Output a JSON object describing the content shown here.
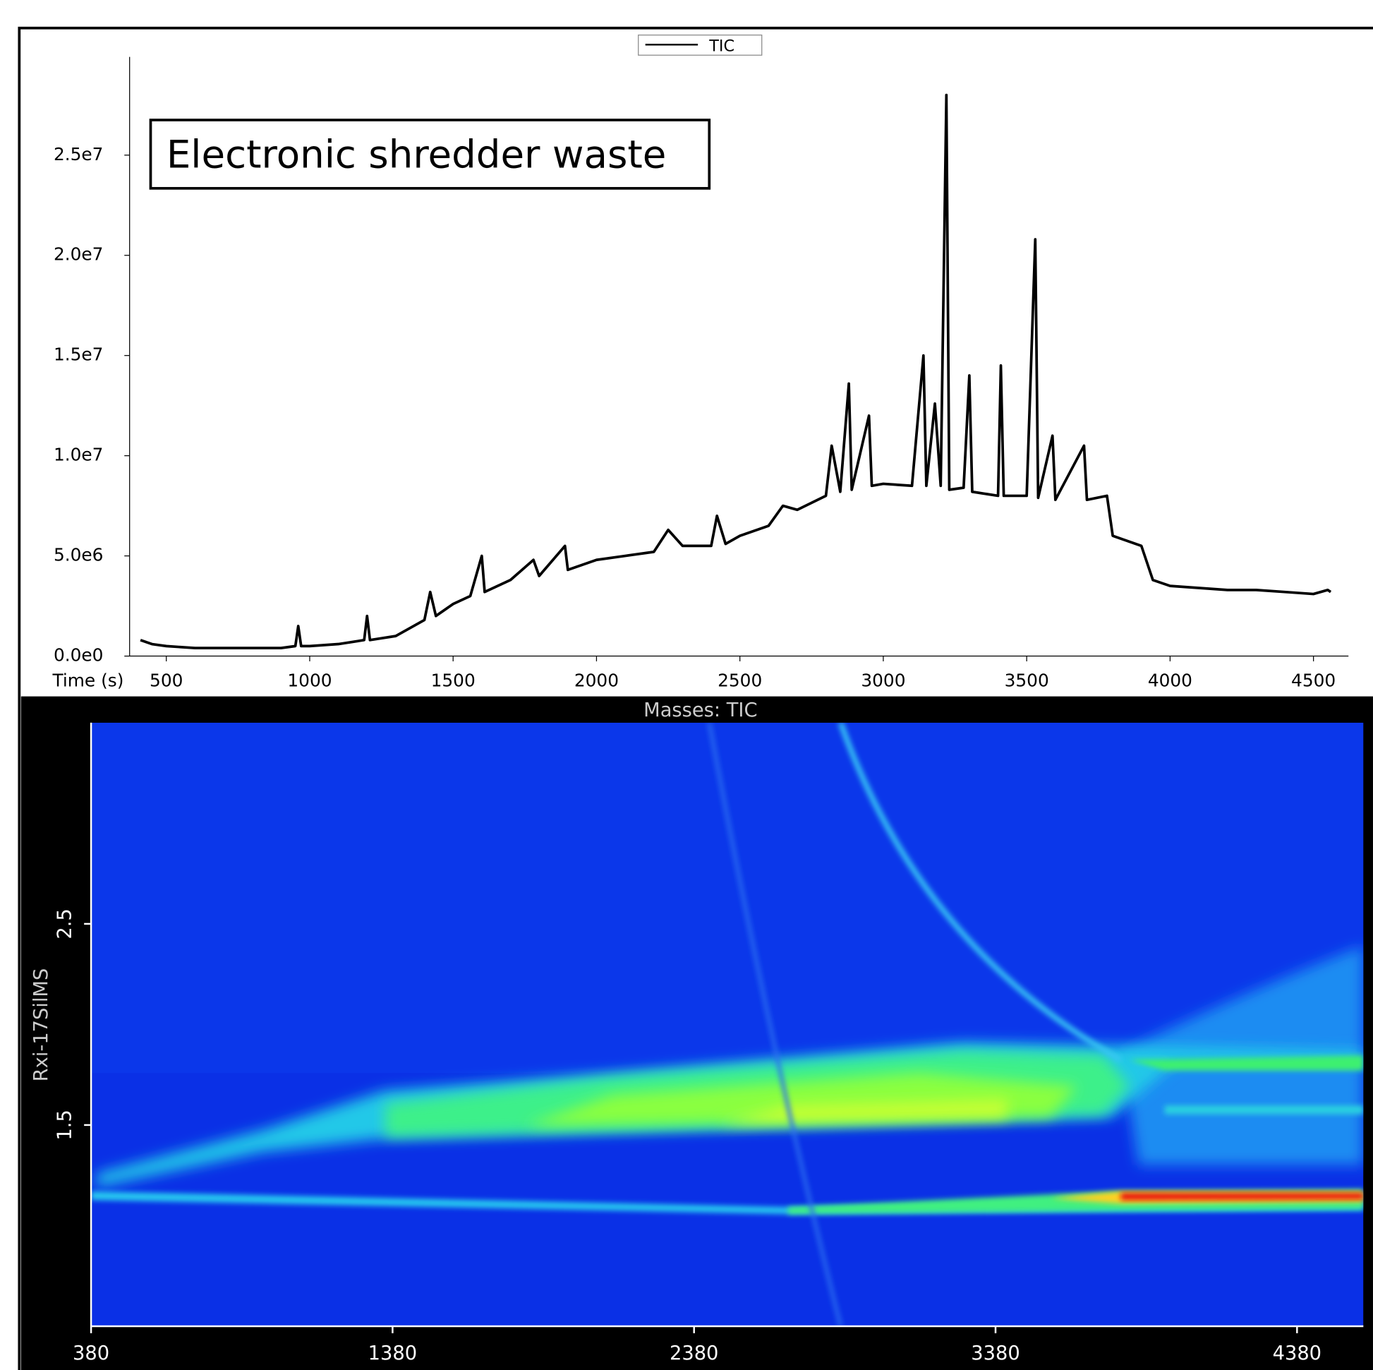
{
  "chart_data": [
    {
      "type": "line",
      "annotation": "Electronic shredder waste",
      "x_label": "Time (s)",
      "x": [
        410,
        450,
        500,
        600,
        700,
        900,
        950,
        960,
        970,
        1000,
        1100,
        1190,
        1200,
        1210,
        1300,
        1400,
        1420,
        1440,
        1500,
        1560,
        1600,
        1610,
        1700,
        1780,
        1800,
        1890,
        1900,
        2000,
        2100,
        2200,
        2250,
        2300,
        2400,
        2420,
        2450,
        2500,
        2600,
        2650,
        2700,
        2800,
        2820,
        2850,
        2880,
        2890,
        2950,
        2960,
        3000,
        3100,
        3140,
        3150,
        3180,
        3200,
        3220,
        3230,
        3280,
        3300,
        3310,
        3400,
        3410,
        3420,
        3500,
        3530,
        3540,
        3590,
        3600,
        3700,
        3710,
        3780,
        3800,
        3900,
        3940,
        4000,
        4100,
        4200,
        4300,
        4400,
        4500,
        4550,
        4560
      ],
      "series": [
        {
          "name": "TIC",
          "color": "#000000",
          "values": [
            800000,
            600000,
            500000,
            400000,
            400000,
            400000,
            500000,
            1500000,
            500000,
            500000,
            600000,
            800000,
            2000000,
            800000,
            1000000,
            1800000,
            3200000,
            2000000,
            2600000,
            3000000,
            5000000,
            3200000,
            3800000,
            4800000,
            4000000,
            5500000,
            4300000,
            4800000,
            5000000,
            5200000,
            6300000,
            5500000,
            5500000,
            7000000,
            5600000,
            6000000,
            6500000,
            7500000,
            7300000,
            8000000,
            10500000,
            8200000,
            13600000,
            8300000,
            12000000,
            8500000,
            8600000,
            8500000,
            15000000,
            8500000,
            12600000,
            8500000,
            28000000,
            8300000,
            8400000,
            14000000,
            8200000,
            8000000,
            14500000,
            8000000,
            8000000,
            20800000,
            7900000,
            11000000,
            7800000,
            10500000,
            7800000,
            8000000,
            6000000,
            5500000,
            3800000,
            3500000,
            3400000,
            3300000,
            3300000,
            3200000,
            3100000,
            3300000,
            3200000
          ]
        }
      ],
      "xlim": [
        372,
        4622
      ],
      "ylim": [
        0,
        29900000
      ],
      "xticks": [
        500,
        1000,
        1500,
        2000,
        2500,
        3000,
        3500,
        4000,
        4500
      ],
      "yticks": [
        {
          "value": 0,
          "label": "0.0e0"
        },
        {
          "value": 5000000,
          "label": "5.0e6"
        },
        {
          "value": 10000000,
          "label": "1.0e7"
        },
        {
          "value": 15000000,
          "label": "1.5e7"
        },
        {
          "value": 20000000,
          "label": "2.0e7"
        },
        {
          "value": 25000000,
          "label": "2.5e7"
        }
      ],
      "legend": "top"
    },
    {
      "type": "heatmap",
      "title": "Masses: TIC",
      "y_label": "Rxi-17SilMS",
      "xlim": [
        380,
        4600
      ],
      "ylim": [
        0.5,
        3.5
      ],
      "xticks": [
        380,
        1380,
        2380,
        3380,
        4380
      ],
      "yticks": [
        1.5,
        2.5
      ]
    }
  ]
}
